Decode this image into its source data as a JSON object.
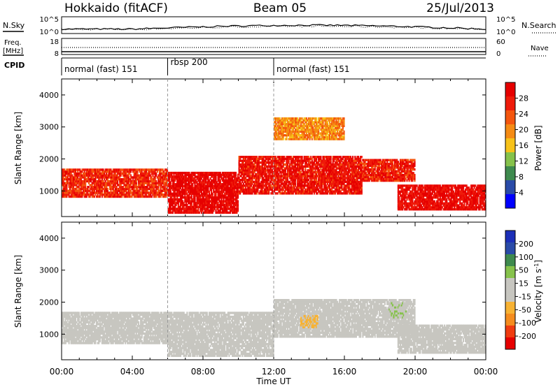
{
  "header": {
    "title_left": "Hokkaido (fitACF)",
    "title_center": "Beam 05",
    "title_right": "25/Jul/2013"
  },
  "top_panels": {
    "nsky_label": "N.Sky",
    "nsky_ticks": [
      "10^5",
      "10^0"
    ],
    "nsearch_label": "N.Search",
    "nsearch_ticks": [
      "10^5",
      "10^0"
    ],
    "freq_label_1": "Freq.",
    "freq_label_2": "[MHz]",
    "freq_ticks": [
      "18",
      "8"
    ],
    "nave_label": "Nave",
    "nave_ticks": [
      "60",
      "0"
    ],
    "cpid_label": "CPID",
    "cpid_segments": [
      {
        "name": "normal (fast) 151",
        "start_hour": 0,
        "end_hour": 6
      },
      {
        "name": "rbsp 200",
        "start_hour": 6,
        "end_hour": 12
      },
      {
        "name": "normal (fast) 151",
        "start_hour": 12,
        "end_hour": 24
      }
    ]
  },
  "colors": {
    "power_scale": [
      "#0000ff",
      "#2a4ba8",
      "#3e8a4e",
      "#86c24b",
      "#f7c21a",
      "#f58b14",
      "#f4560e",
      "#ef1b0a",
      "#e60000"
    ],
    "velocity_scale": [
      "#e60000",
      "#f03c10",
      "#f58c1e",
      "#f7b233",
      "#c7c6c0",
      "#c7c6c0",
      "#86c24b",
      "#3e8a4e",
      "#2a4ba8",
      "#1c2fb8"
    ]
  },
  "chart_data": [
    {
      "type": "heatmap",
      "title": "",
      "xlabel": "Time UT",
      "ylabel": "Slant Range [km]",
      "colorbar_label": "Power [dB]",
      "colorbar_ticks": [
        "28",
        "24",
        "20",
        "16",
        "12",
        "8",
        "4"
      ],
      "colorbar_range": [
        0,
        32
      ],
      "xlim_hours": [
        0,
        24
      ],
      "ylim_km": [
        200,
        4500
      ],
      "x_ticks": [
        "00:00",
        "04:00",
        "08:00",
        "12:00",
        "16:00",
        "20:00",
        "00:00"
      ],
      "y_ticks": [
        "1000",
        "2000",
        "3000",
        "4000"
      ],
      "bands": [
        {
          "t0": 0,
          "t1": 6,
          "r0": 800,
          "r1": 1700,
          "value": 26
        },
        {
          "t0": 6,
          "t1": 10,
          "r0": 300,
          "r1": 1600,
          "value": 30
        },
        {
          "t0": 10,
          "t1": 17,
          "r0": 900,
          "r1": 2100,
          "value": 28
        },
        {
          "t0": 17,
          "t1": 20,
          "r0": 1300,
          "r1": 2000,
          "value": 27
        },
        {
          "t0": 19,
          "t1": 24,
          "r0": 400,
          "r1": 1200,
          "value": 29
        },
        {
          "t0": 12,
          "t1": 16,
          "r0": 2600,
          "r1": 3300,
          "value": 20
        }
      ]
    },
    {
      "type": "heatmap",
      "title": "",
      "xlabel": "Time UT",
      "ylabel": "Slant Range [km]",
      "colorbar_label": "Velocity [m s^-1]",
      "colorbar_ticks": [
        "200",
        "100",
        "50",
        "15",
        "-15",
        "-50",
        "-100",
        "-200"
      ],
      "colorbar_range": [
        -250,
        250
      ],
      "xlim_hours": [
        0,
        24
      ],
      "ylim_km": [
        200,
        4500
      ],
      "x_ticks": [
        "00:00",
        "04:00",
        "08:00",
        "12:00",
        "16:00",
        "20:00",
        "00:00"
      ],
      "y_ticks": [
        "1000",
        "2000",
        "3000",
        "4000"
      ],
      "bands": [
        {
          "t0": 0,
          "t1": 6,
          "r0": 700,
          "r1": 1700,
          "value": 0
        },
        {
          "t0": 6,
          "t1": 12,
          "r0": 300,
          "r1": 1700,
          "value": 0
        },
        {
          "t0": 12,
          "t1": 20,
          "r0": 900,
          "r1": 2100,
          "value": 0
        },
        {
          "t0": 19,
          "t1": 24,
          "r0": 400,
          "r1": 1300,
          "value": 0
        },
        {
          "t0": 13.5,
          "t1": 14.5,
          "r0": 1200,
          "r1": 1600,
          "value": -60
        },
        {
          "t0": 18.5,
          "t1": 19.5,
          "r0": 1500,
          "r1": 2000,
          "value": 40
        }
      ]
    }
  ]
}
